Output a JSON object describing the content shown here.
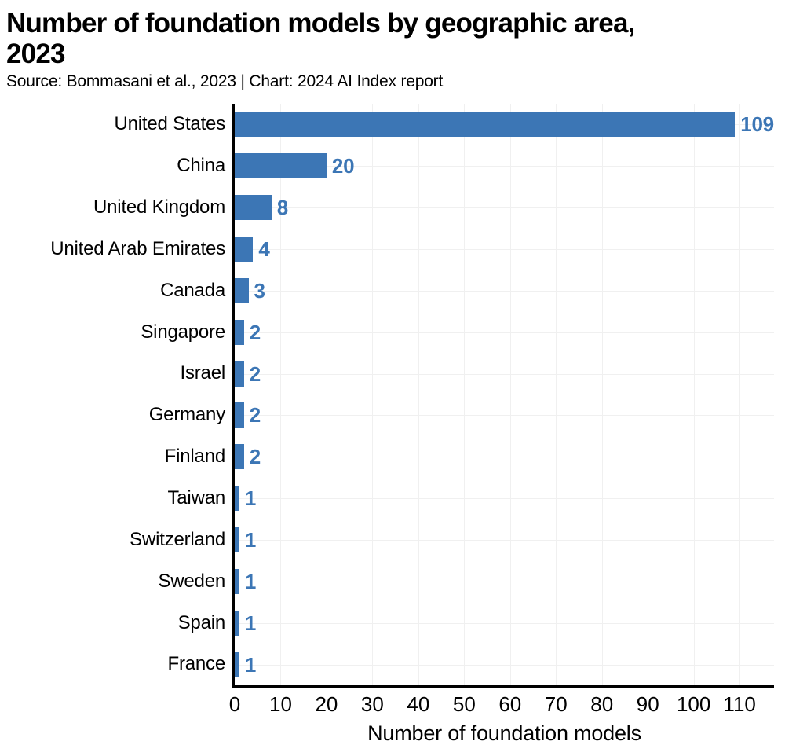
{
  "header": {
    "title_lines": [
      "Number of foundation models by geographic area,",
      "2023"
    ],
    "source": "Source: Bommasani et al., 2023 | Chart: 2024 AI Index report"
  },
  "chart_data": {
    "type": "bar",
    "orientation": "horizontal",
    "title": "Number of foundation models by geographic area, 2023",
    "categories": [
      "United States",
      "China",
      "United Kingdom",
      "United Arab Emirates",
      "Canada",
      "Singapore",
      "Israel",
      "Germany",
      "Finland",
      "Taiwan",
      "Switzerland",
      "Sweden",
      "Spain",
      "France"
    ],
    "values": [
      109,
      20,
      8,
      4,
      3,
      2,
      2,
      2,
      2,
      1,
      1,
      1,
      1,
      1
    ],
    "xlabel": "Number of foundation models",
    "xticks": [
      0,
      10,
      20,
      30,
      40,
      50,
      60,
      70,
      80,
      90,
      100,
      110
    ],
    "xlim": [
      0,
      117.5
    ],
    "grid": "horizontal-at-category-centers and vertical-at-ticks, light",
    "legend": "none",
    "colors": {
      "bar": "#3C76B5",
      "value_label": "#3C76B5",
      "axis": "#000000",
      "gridline": "#f0f0f0",
      "text": "#000000"
    }
  }
}
